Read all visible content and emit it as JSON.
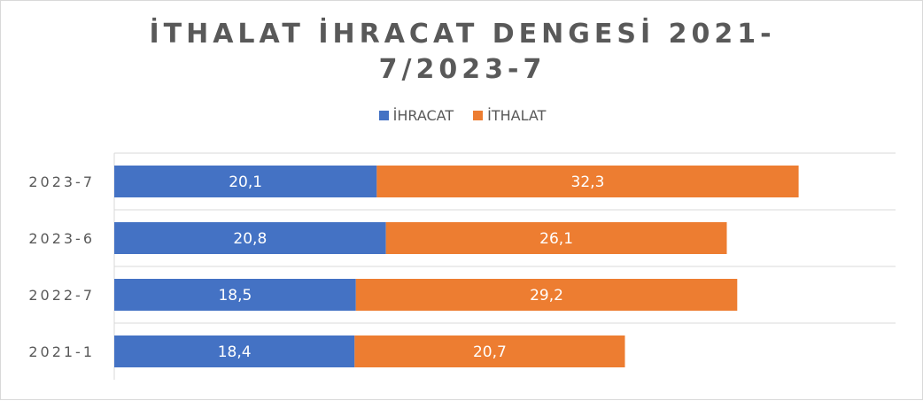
{
  "chart_data": {
    "type": "bar",
    "orientation": "horizontal",
    "stacked": true,
    "title_lines": [
      "İTHALAT İHRACAT DENGESİ 2021-",
      "7/2023-7"
    ],
    "categories": [
      "2023-7",
      "2023-6",
      "2022-7",
      "2021-1"
    ],
    "series": [
      {
        "name": "İHRACAT",
        "color": "#4472c4",
        "values": [
          20.1,
          20.8,
          18.5,
          18.4
        ],
        "labels": [
          "20,1",
          "20,8",
          "18,5",
          "18,4"
        ]
      },
      {
        "name": "İTHALAT",
        "color": "#ed7d31",
        "values": [
          32.3,
          26.1,
          29.2,
          20.7
        ],
        "labels": [
          "32,3",
          "26,1",
          "29,2",
          "20,7"
        ]
      }
    ],
    "xlim": [
      0,
      60
    ],
    "grid": "horizontal",
    "legend": "top"
  }
}
